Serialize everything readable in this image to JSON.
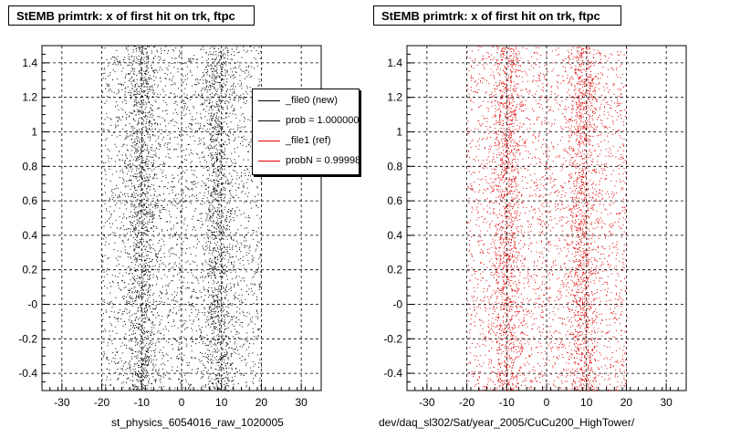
{
  "chart_data": [
    {
      "type": "scatter",
      "title": "StEMB primtrk: x of first hit on trk, ftpc",
      "xlabel": "st_physics_6054016_raw_1020005",
      "ylabel": "",
      "xlim": [
        -35,
        35
      ],
      "ylim": [
        -0.5,
        1.5
      ],
      "xticks": [
        -30,
        -20,
        -10,
        0,
        10,
        20,
        30
      ],
      "xtick_labels": [
        "-30",
        "-20",
        "-10",
        "0",
        "10",
        "20",
        "30"
      ],
      "yticks": [
        -0.4,
        -0.2,
        0,
        0.2,
        0.4,
        0.6,
        0.8,
        1,
        1.2,
        1.4
      ],
      "ytick_labels": [
        "-0.4",
        "-0.2",
        "-0",
        "0.2",
        "0.4",
        "0.6",
        "0.8",
        "1",
        "1.2",
        "1.4"
      ],
      "grid": true,
      "point_color": "#000000",
      "x_range_density": [
        [
          -20,
          20
        ]
      ],
      "density_peaks_x": [
        -10,
        9
      ],
      "legend": {
        "placement": "top-right",
        "entries": [
          {
            "label": "_file0 (new)",
            "color": "#000000"
          },
          {
            "label": "prob = 1.000000",
            "color": "#000000"
          },
          {
            "label": "_file1 (ref)",
            "color": "#e00000"
          },
          {
            "label": "probN = 0.999985",
            "color": "#e00000"
          }
        ]
      }
    },
    {
      "type": "scatter",
      "title": "StEMB primtrk: x of first hit on trk, ftpc",
      "xlabel": "dev/daq_sl302/Sat/year_2005/CuCu200_HighTower/",
      "ylabel": "",
      "xlim": [
        -35,
        35
      ],
      "ylim": [
        -0.5,
        1.5
      ],
      "xticks": [
        -30,
        -20,
        -10,
        0,
        10,
        20,
        30
      ],
      "xtick_labels": [
        "-30",
        "-20",
        "-10",
        "0",
        "10",
        "20",
        "30"
      ],
      "yticks": [
        -0.4,
        -0.2,
        0,
        0.2,
        0.4,
        0.6,
        0.8,
        1,
        1.2,
        1.4
      ],
      "ytick_labels": [
        "-0.4",
        "-0.2",
        "-0",
        "0.2",
        "0.4",
        "0.6",
        "0.8",
        "1",
        "1.2",
        "1.4"
      ],
      "grid": true,
      "point_color": "#e00000",
      "x_range_density": [
        [
          -20,
          20
        ]
      ],
      "density_peaks_x": [
        -10,
        9
      ]
    }
  ]
}
